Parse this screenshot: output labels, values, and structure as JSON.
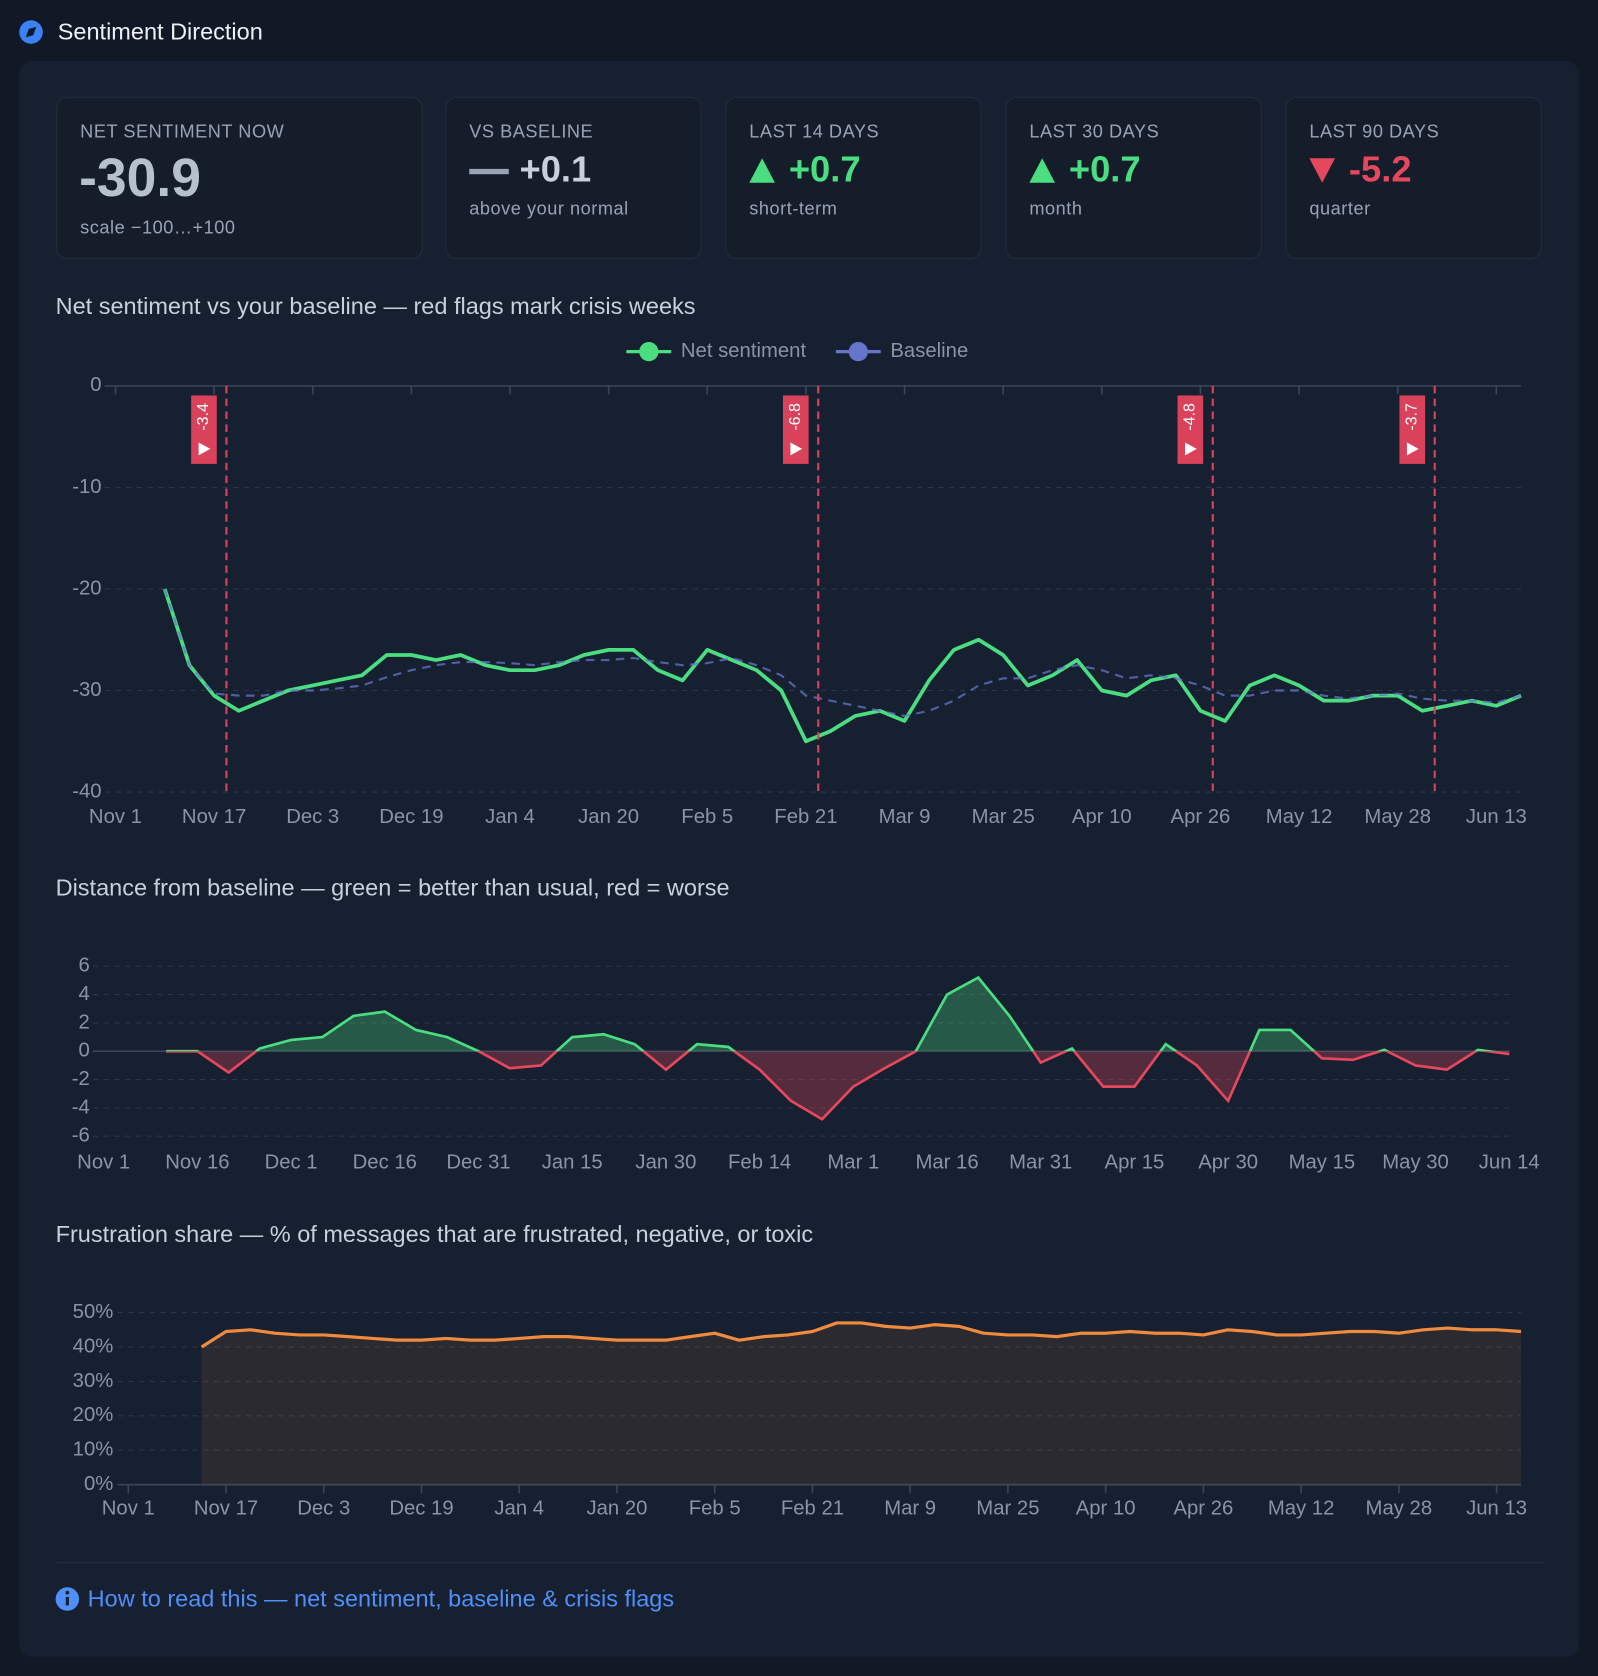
{
  "header": {
    "title": "Sentiment Direction"
  },
  "kpis": [
    {
      "label": "NET SENTIMENT NOW",
      "value": "-30.9",
      "note": "scale −100…+100"
    },
    {
      "label": "VS BASELINE",
      "value": "+0.1",
      "note": "above your normal",
      "trend": "flat"
    },
    {
      "label": "LAST 14 DAYS",
      "value": "+0.7",
      "note": "short-term",
      "trend": "up"
    },
    {
      "label": "LAST 30 DAYS",
      "value": "+0.7",
      "note": "month",
      "trend": "up"
    },
    {
      "label": "LAST 90 DAYS",
      "value": "-5.2",
      "note": "quarter",
      "trend": "down"
    }
  ],
  "chart_data": [
    {
      "type": "line",
      "title": "Net sentiment vs your baseline — red flags mark crisis weeks",
      "x": [
        "Nov 1",
        "Nov 5",
        "Nov 9",
        "Nov 13",
        "Nov 17",
        "Nov 21",
        "Nov 25",
        "Nov 29",
        "Dec 3",
        "Dec 7",
        "Dec 11",
        "Dec 15",
        "Dec 19",
        "Dec 23",
        "Dec 27",
        "Dec 31",
        "Jan 4",
        "Jan 8",
        "Jan 12",
        "Jan 16",
        "Jan 20",
        "Jan 24",
        "Jan 28",
        "Feb 1",
        "Feb 5",
        "Feb 9",
        "Feb 13",
        "Feb 17",
        "Feb 21",
        "Feb 25",
        "Mar 1",
        "Mar 5",
        "Mar 9",
        "Mar 13",
        "Mar 17",
        "Mar 21",
        "Mar 25",
        "Mar 29",
        "Apr 2",
        "Apr 6",
        "Apr 10",
        "Apr 14",
        "Apr 18",
        "Apr 22",
        "Apr 26",
        "Apr 30",
        "May 4",
        "May 8",
        "May 12",
        "May 16",
        "May 20",
        "May 24",
        "May 28",
        "Jun 1",
        "Jun 5",
        "Jun 9",
        "Jun 13",
        "Jun 17"
      ],
      "series": [
        {
          "name": "Net sentiment",
          "color": "#4ade80",
          "values": [
            null,
            null,
            -20,
            -27.5,
            -30.5,
            -32,
            -31,
            -30,
            -29.5,
            -29,
            -28.5,
            -26.5,
            -26.5,
            -27,
            -26.5,
            -27.5,
            -28,
            -28,
            -27.5,
            -26.5,
            -26,
            -26,
            -28,
            -29,
            -26,
            -27,
            -28,
            -30,
            -35,
            -34,
            -32.5,
            -32,
            -33,
            -29,
            -26,
            -25,
            -26.5,
            -29.5,
            -28.5,
            -27,
            -30,
            -30.5,
            -29,
            -28.5,
            -32,
            -33,
            -29.5,
            -28.5,
            -29.5,
            -31,
            -31,
            -30.5,
            -30.5,
            -32,
            -31.5,
            -31,
            -31.5,
            -30.5
          ]
        },
        {
          "name": "Baseline",
          "color": "#6674cc",
          "values": [
            null,
            null,
            -20,
            -27.5,
            -30.3,
            -30.5,
            -30.5,
            -30,
            -30,
            -29.8,
            -29.5,
            -28.7,
            -28,
            -27.5,
            -27.2,
            -27.2,
            -27.3,
            -27.5,
            -27.2,
            -27,
            -27,
            -26.8,
            -27.2,
            -27.5,
            -27.3,
            -26.8,
            -27.5,
            -28.5,
            -30.5,
            -31,
            -31.5,
            -32,
            -32.5,
            -32,
            -31,
            -29.5,
            -28.8,
            -28.8,
            -28,
            -27.5,
            -28,
            -28.8,
            -28.5,
            -28.8,
            -29.5,
            -30.5,
            -30.5,
            -30,
            -30,
            -30.5,
            -30.8,
            -30.5,
            -30.3,
            -30.8,
            -31,
            -31,
            -31.2,
            -30.5
          ]
        }
      ],
      "flags": [
        {
          "x": "Nov 19",
          "value": -3.4
        },
        {
          "x": "Feb 23",
          "value": -6.8
        },
        {
          "x": "Apr 28",
          "value": -4.8
        },
        {
          "x": "Jun 3",
          "value": -3.7
        }
      ],
      "flag_color": "#d9425a",
      "xticks": [
        "Nov 1",
        "Nov 17",
        "Dec 3",
        "Dec 19",
        "Jan 4",
        "Jan 20",
        "Feb 5",
        "Feb 21",
        "Mar 9",
        "Mar 25",
        "Apr 10",
        "Apr 26",
        "May 12",
        "May 28",
        "Jun 13"
      ],
      "ylim": [
        -40,
        0
      ],
      "yticks": [
        0,
        -10,
        -20,
        -30,
        -40
      ],
      "grid": true,
      "legend": "top"
    },
    {
      "type": "area",
      "title": "Distance from baseline — green = better than usual, red = worse",
      "x": [
        "Nov 1",
        "Nov 6",
        "Nov 11",
        "Nov 16",
        "Nov 21",
        "Nov 26",
        "Dec 1",
        "Dec 6",
        "Dec 11",
        "Dec 16",
        "Dec 21",
        "Dec 26",
        "Dec 31",
        "Jan 5",
        "Jan 10",
        "Jan 15",
        "Jan 20",
        "Jan 25",
        "Jan 30",
        "Feb 4",
        "Feb 9",
        "Feb 14",
        "Feb 19",
        "Feb 24",
        "Mar 1",
        "Mar 6",
        "Mar 11",
        "Mar 16",
        "Mar 21",
        "Mar 26",
        "Mar 31",
        "Apr 5",
        "Apr 10",
        "Apr 15",
        "Apr 20",
        "Apr 25",
        "Apr 30",
        "May 5",
        "May 10",
        "May 15",
        "May 20",
        "May 25",
        "May 30",
        "Jun 4",
        "Jun 9",
        "Jun 14"
      ],
      "values": [
        null,
        null,
        0,
        0,
        -1.5,
        0.2,
        0.8,
        1,
        2.5,
        2.8,
        1.5,
        1,
        0,
        -1.2,
        -1,
        1,
        1.2,
        0.5,
        -1.3,
        0.5,
        0.3,
        -1.3,
        -3.5,
        -4.8,
        -2.5,
        -1.2,
        0,
        4,
        5.2,
        2.5,
        -0.8,
        0.2,
        -2.5,
        -2.5,
        0.5,
        -1,
        -3.5,
        1.5,
        1.5,
        -0.5,
        -0.6,
        0.1,
        -1,
        -1.3,
        0.1,
        -0.2
      ],
      "positive_color": "#4ade80",
      "negative_color": "#e5485d",
      "xticks": [
        "Nov 1",
        "Nov 16",
        "Dec 1",
        "Dec 16",
        "Dec 31",
        "Jan 15",
        "Jan 30",
        "Feb 14",
        "Mar 1",
        "Mar 16",
        "Mar 31",
        "Apr 15",
        "Apr 30",
        "May 15",
        "May 30",
        "Jun 14"
      ],
      "ylim": [
        -6,
        6
      ],
      "yticks": [
        6,
        4,
        2,
        0,
        -2,
        -4,
        -6
      ],
      "grid": true
    },
    {
      "type": "area",
      "title": "Frustration share — % of messages that are frustrated, negative, or toxic",
      "x": [
        "Nov 1",
        "Nov 5",
        "Nov 9",
        "Nov 13",
        "Nov 17",
        "Nov 21",
        "Nov 25",
        "Nov 29",
        "Dec 3",
        "Dec 7",
        "Dec 11",
        "Dec 15",
        "Dec 19",
        "Dec 23",
        "Dec 27",
        "Dec 31",
        "Jan 4",
        "Jan 8",
        "Jan 12",
        "Jan 16",
        "Jan 20",
        "Jan 24",
        "Jan 28",
        "Feb 1",
        "Feb 5",
        "Feb 9",
        "Feb 13",
        "Feb 17",
        "Feb 21",
        "Feb 25",
        "Mar 1",
        "Mar 5",
        "Mar 9",
        "Mar 13",
        "Mar 17",
        "Mar 21",
        "Mar 25",
        "Mar 29",
        "Apr 2",
        "Apr 6",
        "Apr 10",
        "Apr 14",
        "Apr 18",
        "Apr 22",
        "Apr 26",
        "Apr 30",
        "May 4",
        "May 8",
        "May 12",
        "May 16",
        "May 20",
        "May 24",
        "May 28",
        "Jun 1",
        "Jun 5",
        "Jun 9",
        "Jun 13",
        "Jun 17"
      ],
      "values": [
        null,
        null,
        null,
        40,
        44.5,
        45,
        44,
        43.5,
        43.5,
        43,
        42.5,
        42,
        42,
        42.5,
        42,
        42,
        42.5,
        43,
        43,
        42.5,
        42,
        42,
        42,
        43,
        44,
        42,
        43,
        43.5,
        44.5,
        47,
        47,
        46,
        45.5,
        46.5,
        46,
        44,
        43.5,
        43.5,
        43,
        44,
        44,
        44.5,
        44,
        44,
        43.5,
        45,
        44.5,
        43.5,
        43.5,
        44,
        44.5,
        44.5,
        44,
        45,
        45.5,
        45,
        45,
        44.5
      ],
      "color": "#f08a3c",
      "xticks": [
        "Nov 1",
        "Nov 17",
        "Dec 3",
        "Dec 19",
        "Jan 4",
        "Jan 20",
        "Feb 5",
        "Feb 21",
        "Mar 9",
        "Mar 25",
        "Apr 10",
        "Apr 26",
        "May 12",
        "May 28",
        "Jun 13"
      ],
      "ylim": [
        0,
        50
      ],
      "yticks": [
        {
          "value": 50,
          "label": "50%"
        },
        {
          "value": 40,
          "label": "40%"
        },
        {
          "value": 30,
          "label": "30%"
        },
        {
          "value": 20,
          "label": "20%"
        },
        {
          "value": 10,
          "label": "10%"
        },
        {
          "value": 0,
          "label": "0%"
        }
      ],
      "grid": true
    }
  ],
  "footer": {
    "link": "How to read this — net sentiment, baseline & crisis flags"
  }
}
